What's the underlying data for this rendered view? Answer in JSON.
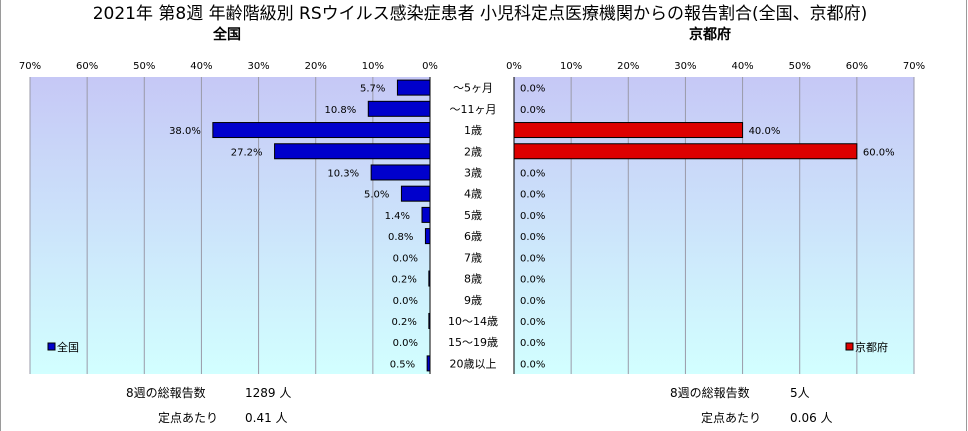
{
  "title": "2021年 第8週 年齢階級別 RSウイルス感染症患者 小児科定点医療機関からの報告割合(全国、京都府)",
  "colors": {
    "national": "#0000cc",
    "kyoto": "#dd0000",
    "bg_top": "#c6c8f6",
    "bg_bottom": "#d2ffff"
  },
  "chart_data": [
    {
      "type": "bar",
      "title": "全国",
      "orientation": "horizontal",
      "direction": "reversed",
      "xlim": [
        0,
        70
      ],
      "x_ticks": [
        "70%",
        "60%",
        "50%",
        "40%",
        "30%",
        "20%",
        "10%",
        "0%"
      ],
      "categories": [
        "～5ヶ月",
        "～11ヶ月",
        "1歳",
        "2歳",
        "3歳",
        "4歳",
        "5歳",
        "6歳",
        "7歳",
        "8歳",
        "9歳",
        "10～14歳",
        "15～19歳",
        "20歳以上"
      ],
      "series": [
        {
          "name": "全国",
          "values": [
            5.7,
            10.8,
            38.0,
            27.2,
            10.3,
            5.0,
            1.4,
            0.8,
            0.0,
            0.2,
            0.0,
            0.2,
            0.0,
            0.5
          ],
          "labels": [
            "5.7%",
            "10.8%",
            "38.0%",
            "27.2%",
            "10.3%",
            "5.0%",
            "1.4%",
            "0.8%",
            "0.0%",
            "0.2%",
            "0.0%",
            "0.2%",
            "0.0%",
            "0.5%"
          ]
        }
      ],
      "grid": true,
      "legend": "bottom-left"
    },
    {
      "type": "bar",
      "title": "京都府",
      "orientation": "horizontal",
      "xlim": [
        0,
        70
      ],
      "x_ticks": [
        "0%",
        "10%",
        "20%",
        "30%",
        "40%",
        "50%",
        "60%",
        "70%"
      ],
      "categories": [
        "～5ヶ月",
        "～11ヶ月",
        "1歳",
        "2歳",
        "3歳",
        "4歳",
        "5歳",
        "6歳",
        "7歳",
        "8歳",
        "9歳",
        "10～14歳",
        "15～19歳",
        "20歳以上"
      ],
      "series": [
        {
          "name": "京都府",
          "values": [
            0.0,
            0.0,
            40.0,
            60.0,
            0.0,
            0.0,
            0.0,
            0.0,
            0.0,
            0.0,
            0.0,
            0.0,
            0.0,
            0.0
          ],
          "labels": [
            "0.0%",
            "0.0%",
            "40.0%",
            "60.0%",
            "0.0%",
            "0.0%",
            "0.0%",
            "0.0%",
            "0.0%",
            "0.0%",
            "0.0%",
            "0.0%",
            "0.0%",
            "0.0%"
          ]
        }
      ],
      "grid": true,
      "legend": "bottom-right"
    }
  ],
  "footer": {
    "national": {
      "total_label": "8週の総報告数",
      "total_value": "1289 人",
      "per_label": "定点あたり",
      "per_value": "0.41 人"
    },
    "kyoto": {
      "total_label": "8週の総報告数",
      "total_value": "5人",
      "per_label": "定点あたり",
      "per_value": "0.06 人"
    }
  }
}
